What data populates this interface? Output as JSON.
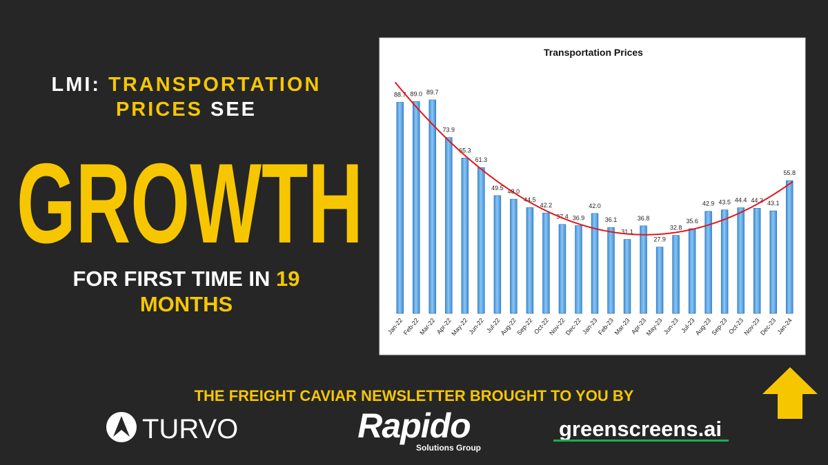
{
  "headline": {
    "lead": "LMI:",
    "highlight": [
      "TRANSPORTATION",
      "PRICES"
    ],
    "tail": "SEE",
    "main": "GROWTH",
    "sub": "FOR FIRST TIME IN",
    "sub_highlight": [
      "19",
      "MONTHS"
    ]
  },
  "footer": {
    "text": "THE FREIGHT CAVIAR NEWSLETTER BROUGHT TO YOU BY",
    "sponsors": [
      "TURVO",
      "Rapido",
      "Solutions Group",
      "greenscreens.ai"
    ]
  },
  "chart_data": {
    "type": "bar",
    "title": "Transportation Prices",
    "categories": [
      "Jan-22",
      "Feb-22",
      "Mar-22",
      "Apr-22",
      "May-22",
      "Jun-22",
      "Jul-22",
      "Aug-22",
      "Sep-22",
      "Oct-22",
      "Nov-22",
      "Dec-22",
      "Jan-23",
      "Feb-23",
      "Mar-23",
      "Apr-23",
      "May-23",
      "Jun-23",
      "Jul-23",
      "Aug-23",
      "Sep-23",
      "Oct-23",
      "Nov-23",
      "Dec-23",
      "Jan-24"
    ],
    "values": [
      88.7,
      89.0,
      89.7,
      73.9,
      65.3,
      61.3,
      49.5,
      48.0,
      44.5,
      42.2,
      37.4,
      36.9,
      42.0,
      36.1,
      31.1,
      36.8,
      27.9,
      32.8,
      35.6,
      42.9,
      43.5,
      44.4,
      44.2,
      43.1,
      55.8
    ],
    "value_labels": [
      "88.7",
      "89.0",
      "89.7",
      "73.9",
      "65.3",
      "61.3",
      "49.5",
      "48.0",
      "44.5",
      "42.2",
      "37.4",
      "36.9",
      "42.0",
      "36.1",
      "31.1",
      "36.8",
      "27.9",
      "32.8",
      "35.6",
      "42.9",
      "43.5",
      "44.4",
      "44.2",
      "43.1",
      "55.8"
    ],
    "color": "#3d8fd8",
    "trendline_color": "#e3161b"
  }
}
